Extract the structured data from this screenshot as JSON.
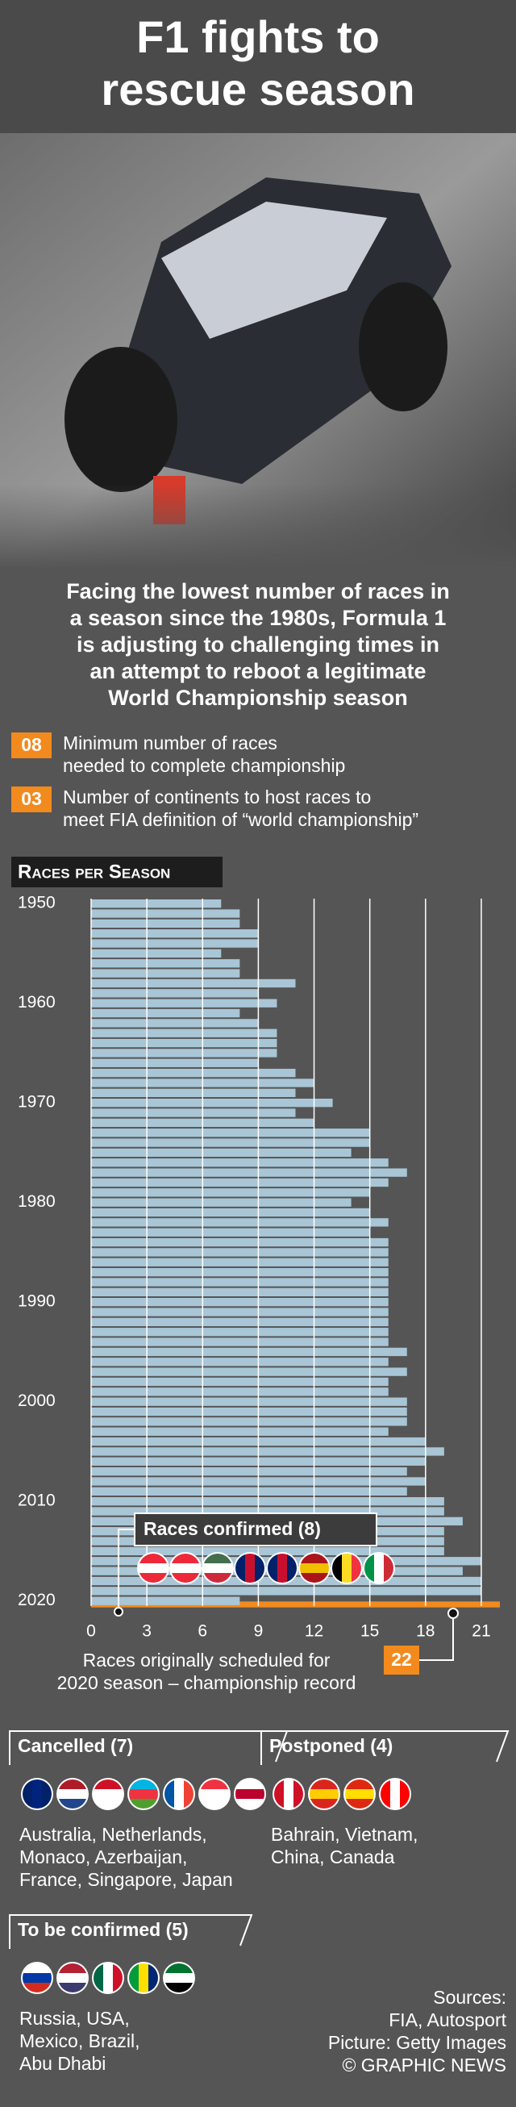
{
  "header": {
    "title": [
      "F1 fights to",
      "rescue season"
    ]
  },
  "intro": [
    "Facing the lowest number of races in",
    "a season since the 1980s, Formula 1",
    "is adjusting to challenging times in",
    "an attempt to reboot a legitimate",
    "World Championship season"
  ],
  "facts": [
    {
      "number": "08",
      "text": [
        "Minimum number of races",
        "needed to complete championship"
      ]
    },
    {
      "number": "03",
      "text": [
        "Number of continents to host races to",
        "meet FIA definition of “world championship”"
      ]
    }
  ],
  "chart_data": {
    "type": "bar",
    "orientation": "horizontal",
    "title": "Races per Season",
    "categories": [
      "1950",
      null,
      null,
      null,
      null,
      null,
      null,
      null,
      null,
      null,
      "1960",
      null,
      null,
      null,
      null,
      null,
      null,
      null,
      null,
      null,
      "1970",
      null,
      null,
      null,
      null,
      null,
      null,
      null,
      null,
      null,
      "1980",
      null,
      null,
      null,
      null,
      null,
      null,
      null,
      null,
      null,
      "1990",
      null,
      null,
      null,
      null,
      null,
      null,
      null,
      null,
      null,
      "2000",
      null,
      null,
      null,
      null,
      null,
      null,
      null,
      null,
      null,
      "2010",
      null,
      null,
      null,
      null,
      null,
      null,
      null,
      null,
      null,
      "2020"
    ],
    "values": [
      7,
      8,
      8,
      9,
      9,
      7,
      8,
      8,
      11,
      9,
      10,
      8,
      9,
      10,
      10,
      10,
      9,
      11,
      12,
      11,
      13,
      11,
      12,
      15,
      15,
      14,
      16,
      17,
      16,
      15,
      14,
      15,
      16,
      15,
      16,
      16,
      16,
      16,
      16,
      16,
      16,
      16,
      16,
      16,
      16,
      17,
      16,
      17,
      16,
      16,
      17,
      17,
      17,
      16,
      18,
      19,
      18,
      17,
      18,
      17,
      19,
      19,
      20,
      19,
      19,
      19,
      21,
      20,
      21,
      21,
      8
    ],
    "color": "#a9c6d6",
    "scheduled": {
      "value": 22,
      "color": "#f28a1e"
    },
    "scheduled_note": [
      "Races originally scheduled for",
      "2020 season – championship record"
    ],
    "confirmed_label": "Races confirmed (8)",
    "xlim": [
      0,
      22
    ],
    "xticks": [
      0,
      3,
      6,
      9,
      12,
      15,
      18,
      21
    ],
    "grid": true
  },
  "cancelled": {
    "title": "Cancelled (7)",
    "text": [
      "Australia, Netherlands,",
      "Monaco, Azerbaijan,",
      "France, Singapore, Japan"
    ]
  },
  "postponed": {
    "title": "Postponed (4)",
    "text": [
      "Bahrain, Vietnam,",
      "China, Canada"
    ]
  },
  "to_be_confirmed": {
    "title": "To be confirmed (5)",
    "text": [
      "Russia, USA,",
      "Mexico, Brazil,",
      "Abu Dhabi"
    ]
  },
  "sources": [
    "Sources:",
    "FIA, Autosport",
    "Picture: Getty Images",
    "© GRAPHIC NEWS"
  ]
}
